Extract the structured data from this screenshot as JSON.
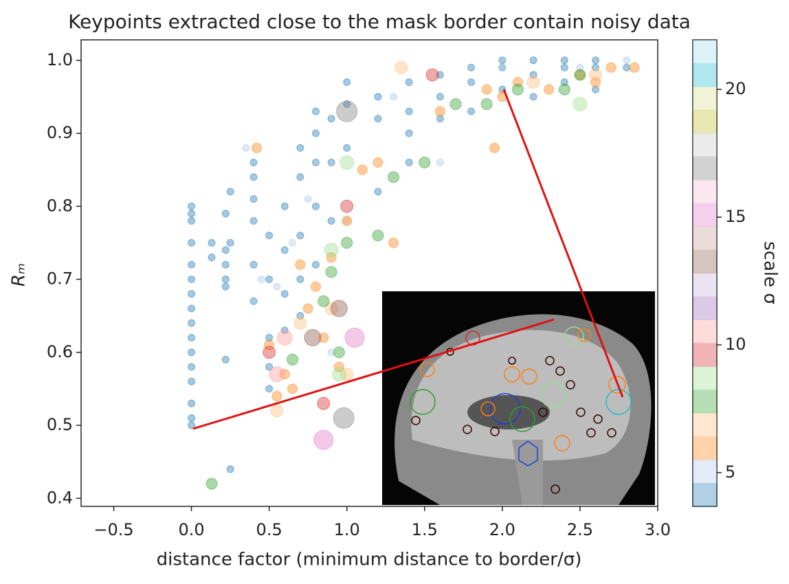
{
  "chart_data": {
    "type": "scatter",
    "title": "Keypoints extracted close to the mask border contain noisy data",
    "xlabel": "distance factor (minimum distance to border/σ)",
    "ylabel": "Rₘ",
    "xlim": [
      -0.71,
      3.0
    ],
    "ylim": [
      0.389,
      1.028
    ],
    "xticks": [
      {
        "value": -0.5,
        "label": "−0.5"
      },
      {
        "value": 0,
        "label": "0.0"
      },
      0.5,
      {
        "value": 1,
        "label": "1.0"
      },
      1.5,
      {
        "value": 2,
        "label": "2.0"
      },
      2.5,
      {
        "value": 3,
        "label": "3.0"
      }
    ],
    "yticks": [
      0.4,
      0.5,
      0.6,
      0.7,
      0.8,
      0.9,
      {
        "value": 1,
        "label": "1.0"
      }
    ],
    "series": [
      {
        "color": "#1f77b4",
        "marker_size": 5,
        "x": [
          0,
          0,
          0,
          0,
          0,
          0,
          0,
          0,
          0,
          0,
          0,
          0,
          0,
          0,
          0,
          0,
          0.13,
          0.13,
          0.22,
          0.22,
          0.22,
          0.22,
          0.22,
          0.22,
          0.25,
          0.25,
          0.25,
          0.4,
          0.4,
          0.4,
          0.4,
          0.4,
          0.4,
          0.5,
          0.5,
          0.5,
          0.5,
          0.5,
          0.6,
          0.6,
          0.6,
          0.6,
          0.7,
          0.7,
          0.7,
          0.7,
          0.7,
          0.8,
          0.8,
          0.8,
          0.8,
          0.8,
          0.9,
          0.9,
          0.9,
          1.0,
          1.0,
          1.0,
          1.2,
          1.2,
          1.2,
          1.4,
          1.4,
          1.4,
          1.4,
          1.6,
          1.6,
          1.6,
          1.8,
          1.8,
          1.8,
          2.0,
          2.0,
          2.0,
          2.2,
          2.2,
          2.2,
          2.4,
          2.4,
          2.4,
          2.6,
          2.6,
          2.6,
          2.8
        ],
        "y": [
          0.5,
          0.51,
          0.53,
          0.56,
          0.58,
          0.6,
          0.62,
          0.64,
          0.66,
          0.68,
          0.7,
          0.72,
          0.75,
          0.78,
          0.79,
          0.8,
          0.73,
          0.75,
          0.59,
          0.69,
          0.7,
          0.72,
          0.74,
          0.79,
          0.44,
          0.75,
          0.82,
          0.67,
          0.72,
          0.78,
          0.81,
          0.84,
          0.86,
          0.55,
          0.58,
          0.62,
          0.7,
          0.76,
          0.63,
          0.68,
          0.74,
          0.8,
          0.65,
          0.7,
          0.76,
          0.84,
          0.88,
          0.72,
          0.8,
          0.86,
          0.9,
          0.93,
          0.78,
          0.86,
          0.92,
          0.88,
          0.94,
          0.97,
          0.82,
          0.92,
          0.95,
          0.86,
          0.9,
          0.93,
          0.97,
          0.92,
          0.95,
          0.98,
          0.93,
          0.97,
          0.99,
          0.96,
          0.99,
          1.0,
          0.95,
          0.98,
          1.0,
          0.97,
          0.99,
          1.0,
          0.96,
          0.99,
          1.0,
          0.99
        ]
      },
      {
        "color": "#aec7e8",
        "marker_size": 5,
        "x": [
          0.35,
          0.55,
          0.75,
          1.0,
          1.3,
          1.6,
          2.0,
          2.5,
          2.8,
          0.9,
          0.45,
          0.65
        ],
        "y": [
          0.88,
          0.69,
          0.81,
          0.78,
          0.95,
          0.86,
          0.99,
          0.99,
          1.0,
          0.6,
          0.7,
          0.75
        ]
      },
      {
        "color": "#ff7f0e",
        "marker_size": 7,
        "x": [
          0.6,
          0.65,
          0.7,
          0.8,
          0.85,
          0.9,
          0.95,
          1.0,
          1.1,
          1.2,
          1.3,
          1.6,
          1.9,
          2.0,
          2.1,
          2.3,
          2.5,
          2.6,
          2.7,
          0.5,
          0.55,
          0.75,
          2.85,
          1.95,
          0.42
        ],
        "y": [
          0.57,
          0.55,
          0.72,
          0.69,
          0.62,
          0.73,
          0.58,
          0.78,
          0.85,
          0.86,
          0.75,
          0.93,
          0.96,
          0.95,
          0.97,
          0.96,
          0.98,
          0.97,
          0.99,
          0.61,
          0.54,
          0.66,
          0.99,
          0.88,
          0.88
        ]
      },
      {
        "color": "#ffbb78",
        "marker_size": 9,
        "x": [
          0.7,
          0.9,
          1.0,
          1.35,
          2.2,
          2.6,
          0.55
        ],
        "y": [
          0.64,
          0.66,
          0.57,
          0.99,
          0.97,
          0.98,
          0.52
        ]
      },
      {
        "color": "#2ca02c",
        "marker_size": 8,
        "x": [
          0.13,
          0.85,
          0.9,
          0.95,
          1.0,
          1.2,
          1.3,
          1.5,
          1.7,
          1.9,
          2.1,
          2.4,
          2.5,
          0.65
        ],
        "y": [
          0.42,
          0.67,
          0.71,
          0.6,
          0.75,
          0.76,
          0.84,
          0.86,
          0.94,
          0.94,
          0.96,
          0.96,
          0.98,
          0.59
        ]
      },
      {
        "color": "#98df8a",
        "marker_size": 10,
        "x": [
          0.9,
          0.95,
          2.5,
          1.0
        ],
        "y": [
          0.74,
          0.57,
          0.94,
          0.86
        ]
      },
      {
        "color": "#d62728",
        "marker_size": 9,
        "x": [
          0.5,
          0.85,
          1.0,
          1.55
        ],
        "y": [
          0.6,
          0.53,
          0.8,
          0.98
        ]
      },
      {
        "color": "#ff9896",
        "marker_size": 11,
        "x": [
          0.6,
          0.55
        ],
        "y": [
          0.62,
          0.57
        ]
      },
      {
        "color": "#8c564b",
        "marker_size": 12,
        "x": [
          0.78,
          0.95
        ],
        "y": [
          0.62,
          0.66
        ]
      },
      {
        "color": "#e377c2",
        "marker_size": 14,
        "x": [
          1.05,
          0.85
        ],
        "y": [
          0.62,
          0.48
        ]
      },
      {
        "color": "#7f7f7f",
        "marker_size": 15,
        "x": [
          1.0,
          0.98
        ],
        "y": [
          0.93,
          0.51
        ]
      }
    ],
    "colorbar": {
      "label": "scale σ",
      "lim": [
        3.68,
        21.94
      ],
      "ticks": [
        5,
        10,
        15,
        20
      ],
      "colors": [
        "#1f77b4",
        "#aec7e8",
        "#ff7f0e",
        "#ffbb78",
        "#2ca02c",
        "#98df8a",
        "#d62728",
        "#ff9896",
        "#9467bd",
        "#c5b0d5",
        "#8c564b",
        "#c49c94",
        "#e377c2",
        "#f7b6d2",
        "#7f7f7f",
        "#c7c7c7",
        "#bcbd22",
        "#dbdb8d",
        "#17becf",
        "#9edae5"
      ]
    }
  }
}
